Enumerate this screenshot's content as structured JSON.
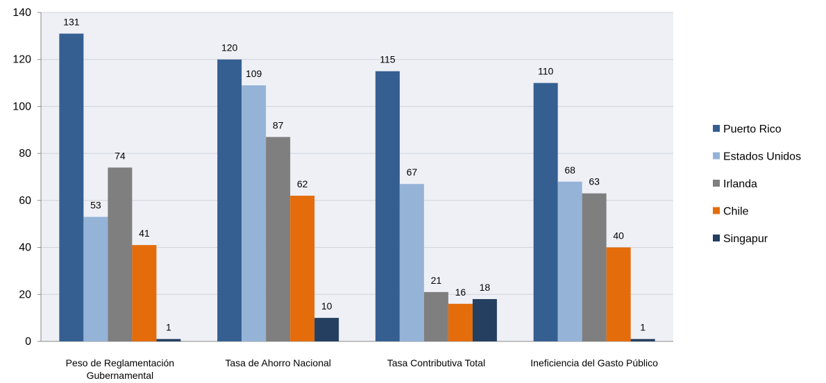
{
  "chart_data": {
    "type": "bar",
    "categories": [
      "Peso de Reglamentación Gubernamental",
      "Tasa de Ahorro Nacional",
      "Tasa Contributiva Total",
      "Ineficiencia del Gasto Público"
    ],
    "series": [
      {
        "name": "Puerto Rico",
        "color": "#365f91",
        "values": [
          131,
          120,
          115,
          110
        ]
      },
      {
        "name": "Estados Unidos",
        "color": "#95b3d7",
        "values": [
          53,
          109,
          67,
          68
        ]
      },
      {
        "name": "Irlanda",
        "color": "#7f7f7f",
        "values": [
          74,
          87,
          21,
          63
        ]
      },
      {
        "name": "Chile",
        "color": "#e46c0a",
        "values": [
          41,
          62,
          16,
          40
        ]
      },
      {
        "name": "Singapur",
        "color": "#243f60",
        "values": [
          1,
          10,
          18,
          1
        ]
      }
    ],
    "ylim": [
      0,
      140
    ],
    "yticks": [
      0,
      20,
      40,
      60,
      80,
      100,
      120,
      140
    ],
    "grid": true,
    "legend": "right"
  }
}
